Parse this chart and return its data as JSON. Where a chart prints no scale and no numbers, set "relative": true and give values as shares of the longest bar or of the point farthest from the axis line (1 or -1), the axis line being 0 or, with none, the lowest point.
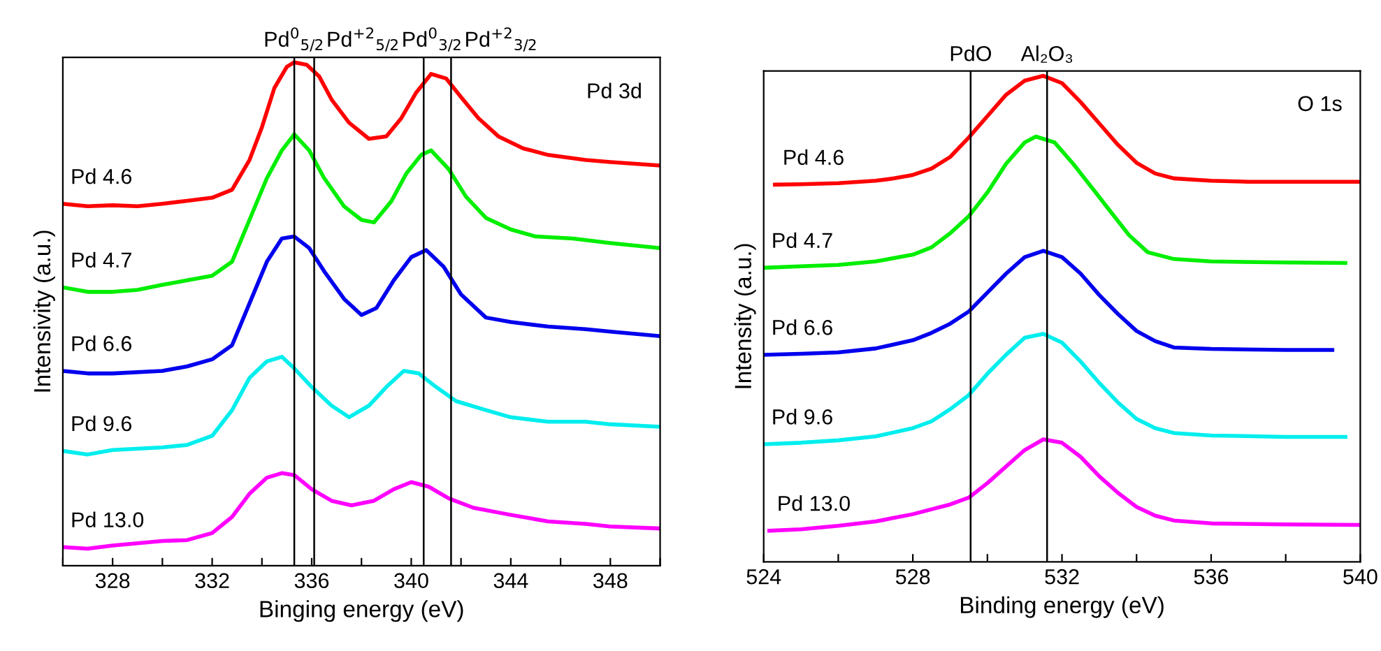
{
  "chart_data": [
    {
      "type": "line",
      "relative": true,
      "xlabel": "Binging energy (eV)",
      "ylabel": "Intensivity (a.u.)",
      "annotations": [
        "Pd 3d"
      ],
      "xlim": [
        326,
        350
      ],
      "xticks": [
        {
          "value": 326,
          "label": null
        },
        328,
        {
          "value": 330,
          "label": null
        },
        332,
        {
          "value": 334,
          "label": null
        },
        336,
        {
          "value": 338,
          "label": null
        },
        340,
        {
          "value": 342,
          "label": null
        },
        344,
        {
          "value": 346,
          "label": null
        },
        348,
        {
          "value": 350,
          "label": null
        }
      ],
      "ref_lines": [
        {
          "axis": "x",
          "value": 335.3,
          "label": "Pd$^{0}$$_{5/2}$"
        },
        {
          "axis": "x",
          "value": 336.1,
          "label": "Pd$^{+2}$$_{5/2}$"
        },
        {
          "axis": "x",
          "value": 340.5,
          "label": "Pd$^{0}$$_{3/2}$"
        },
        {
          "axis": "x",
          "value": 341.6,
          "label": "Pd$^{+2}$$_{3/2}$"
        }
      ],
      "series": [
        {
          "name": "Pd 4.6",
          "color": "#ff0000",
          "x": [
            326,
            327,
            328,
            329,
            330,
            331,
            332,
            332.8,
            333.5,
            334,
            334.5,
            335,
            335.3,
            335.8,
            336.3,
            336.8,
            337.5,
            338.3,
            339,
            339.6,
            340.2,
            340.8,
            341.4,
            342,
            342.7,
            343.5,
            344.5,
            345.5,
            347,
            348,
            350
          ],
          "values": [
            0.719,
            0.714,
            0.716,
            0.714,
            0.719,
            0.725,
            0.731,
            0.747,
            0.806,
            0.871,
            0.949,
            0.991,
            1.0,
            0.995,
            0.972,
            0.926,
            0.88,
            0.848,
            0.853,
            0.889,
            0.94,
            0.977,
            0.968,
            0.931,
            0.889,
            0.853,
            0.829,
            0.816,
            0.806,
            0.802,
            0.795
          ]
        },
        {
          "name": "Pd 4.7",
          "color": "#00ee00",
          "x": [
            326,
            327,
            328,
            329,
            330,
            331,
            332,
            332.8,
            333.5,
            334.2,
            334.8,
            335.3,
            335.9,
            336.5,
            337.3,
            338,
            338.5,
            339.2,
            339.8,
            340.4,
            340.8,
            341.5,
            342.2,
            343,
            344,
            345,
            346.5,
            348,
            350
          ],
          "values": [
            0.553,
            0.544,
            0.544,
            0.548,
            0.558,
            0.567,
            0.576,
            0.604,
            0.687,
            0.77,
            0.825,
            0.857,
            0.825,
            0.77,
            0.714,
            0.687,
            0.682,
            0.724,
            0.779,
            0.816,
            0.825,
            0.788,
            0.733,
            0.691,
            0.668,
            0.654,
            0.65,
            0.641,
            0.631
          ]
        },
        {
          "name": "Pd 6.6",
          "color": "#0000ee",
          "x": [
            326,
            327,
            328,
            330,
            331,
            332,
            332.8,
            333.5,
            334.2,
            334.8,
            335.3,
            335.9,
            336.5,
            337.3,
            338,
            338.6,
            339.3,
            340,
            340.6,
            341.3,
            342,
            343,
            344,
            345.5,
            347,
            348,
            350
          ],
          "values": [
            0.387,
            0.382,
            0.382,
            0.387,
            0.396,
            0.41,
            0.438,
            0.521,
            0.604,
            0.65,
            0.654,
            0.631,
            0.585,
            0.53,
            0.498,
            0.512,
            0.567,
            0.613,
            0.627,
            0.594,
            0.539,
            0.493,
            0.484,
            0.475,
            0.47,
            0.465,
            0.456
          ]
        },
        {
          "name": "Pd 9.6",
          "color": "#00eeee",
          "x": [
            326,
            327,
            328,
            330,
            331,
            332,
            332.8,
            333.5,
            334.2,
            334.8,
            335.3,
            336,
            336.8,
            337.5,
            338.3,
            339,
            339.7,
            340.3,
            341,
            341.8,
            343,
            344,
            345.5,
            347,
            348,
            350
          ],
          "values": [
            0.228,
            0.221,
            0.23,
            0.235,
            0.24,
            0.258,
            0.309,
            0.373,
            0.406,
            0.415,
            0.392,
            0.355,
            0.318,
            0.295,
            0.318,
            0.355,
            0.387,
            0.382,
            0.355,
            0.327,
            0.309,
            0.295,
            0.286,
            0.286,
            0.281,
            0.276
          ]
        },
        {
          "name": "Pd 13.0",
          "color": "#ff00ff",
          "x": [
            326,
            327,
            328,
            330,
            331,
            332,
            332.8,
            333.5,
            334.2,
            334.8,
            335.3,
            336,
            336.8,
            337.6,
            338.5,
            339.3,
            340,
            340.7,
            341.5,
            342.5,
            344,
            345.5,
            347,
            348,
            350
          ],
          "values": [
            0.037,
            0.034,
            0.04,
            0.049,
            0.051,
            0.065,
            0.097,
            0.143,
            0.175,
            0.184,
            0.18,
            0.152,
            0.129,
            0.12,
            0.129,
            0.152,
            0.166,
            0.157,
            0.134,
            0.115,
            0.101,
            0.088,
            0.083,
            0.078,
            0.074
          ]
        }
      ]
    },
    {
      "type": "line",
      "relative": true,
      "xlabel": "Binding energy (eV)",
      "ylabel": "Intensity (a.u.)",
      "annotations": [
        "O 1s"
      ],
      "xlim": [
        524,
        540
      ],
      "xticks": [
        524,
        {
          "value": 526,
          "label": null
        },
        528,
        {
          "value": 530,
          "label": null
        },
        532,
        {
          "value": 534,
          "label": null
        },
        536,
        {
          "value": 538,
          "label": null
        },
        540
      ],
      "ref_lines": [
        {
          "axis": "x",
          "value": 529.55,
          "label": "PdO"
        },
        {
          "axis": "x",
          "value": 531.6,
          "label": "Al₂O₃"
        }
      ],
      "series": [
        {
          "name": "Pd 4.6",
          "color": "#ff0000",
          "x": [
            524.3,
            525,
            526,
            527,
            527.5,
            528,
            528.5,
            529,
            529.5,
            530,
            530.5,
            531,
            531.5,
            532,
            532.5,
            533,
            533.5,
            534,
            534.5,
            535,
            536,
            537,
            538,
            540
          ],
          "values": [
            0.776,
            0.777,
            0.779,
            0.784,
            0.789,
            0.796,
            0.809,
            0.833,
            0.873,
            0.917,
            0.961,
            0.99,
            1.0,
            0.985,
            0.946,
            0.902,
            0.858,
            0.821,
            0.799,
            0.789,
            0.784,
            0.782,
            0.782,
            0.782
          ]
        },
        {
          "name": "Pd 4.7",
          "color": "#00ee00",
          "x": [
            524,
            525,
            526,
            527,
            528,
            528.5,
            529,
            529.5,
            530,
            530.5,
            531,
            531.3,
            531.8,
            532.3,
            532.8,
            533.3,
            533.8,
            534.3,
            535,
            536,
            538,
            539.6
          ],
          "values": [
            0.605,
            0.608,
            0.611,
            0.618,
            0.632,
            0.647,
            0.676,
            0.711,
            0.76,
            0.819,
            0.863,
            0.875,
            0.863,
            0.819,
            0.77,
            0.721,
            0.672,
            0.637,
            0.623,
            0.618,
            0.616,
            0.615
          ]
        },
        {
          "name": "Pd 6.6",
          "color": "#0000ee",
          "x": [
            524,
            525,
            526,
            527,
            528,
            528.5,
            529,
            529.5,
            530,
            530.5,
            531,
            531.5,
            532,
            532.5,
            533,
            533.5,
            534,
            534.5,
            535,
            536,
            538,
            539.25
          ],
          "values": [
            0.426,
            0.428,
            0.431,
            0.439,
            0.456,
            0.471,
            0.49,
            0.515,
            0.554,
            0.593,
            0.627,
            0.64,
            0.627,
            0.593,
            0.549,
            0.51,
            0.475,
            0.454,
            0.441,
            0.438,
            0.436,
            0.436
          ]
        },
        {
          "name": "Pd 9.6",
          "color": "#00eeee",
          "x": [
            524,
            525,
            526,
            527,
            528,
            528.5,
            529,
            529.5,
            530,
            530.5,
            531,
            531.5,
            532,
            532.5,
            533,
            533.5,
            534,
            534.5,
            535,
            536,
            538,
            539.6
          ],
          "values": [
            0.242,
            0.245,
            0.25,
            0.258,
            0.275,
            0.289,
            0.314,
            0.343,
            0.387,
            0.426,
            0.461,
            0.469,
            0.451,
            0.412,
            0.368,
            0.328,
            0.294,
            0.275,
            0.265,
            0.26,
            0.257,
            0.257
          ]
        },
        {
          "name": "Pd 13.0",
          "color": "#ff00ff",
          "x": [
            524.15,
            525,
            526,
            527,
            528,
            528.5,
            529,
            529.5,
            530,
            530.5,
            531,
            531.5,
            532,
            532.5,
            533,
            533.5,
            534,
            534.5,
            535,
            536,
            538,
            540
          ],
          "values": [
            0.064,
            0.067,
            0.074,
            0.083,
            0.098,
            0.108,
            0.118,
            0.132,
            0.162,
            0.196,
            0.23,
            0.252,
            0.245,
            0.216,
            0.176,
            0.142,
            0.113,
            0.095,
            0.085,
            0.079,
            0.077,
            0.076
          ]
        }
      ]
    }
  ]
}
